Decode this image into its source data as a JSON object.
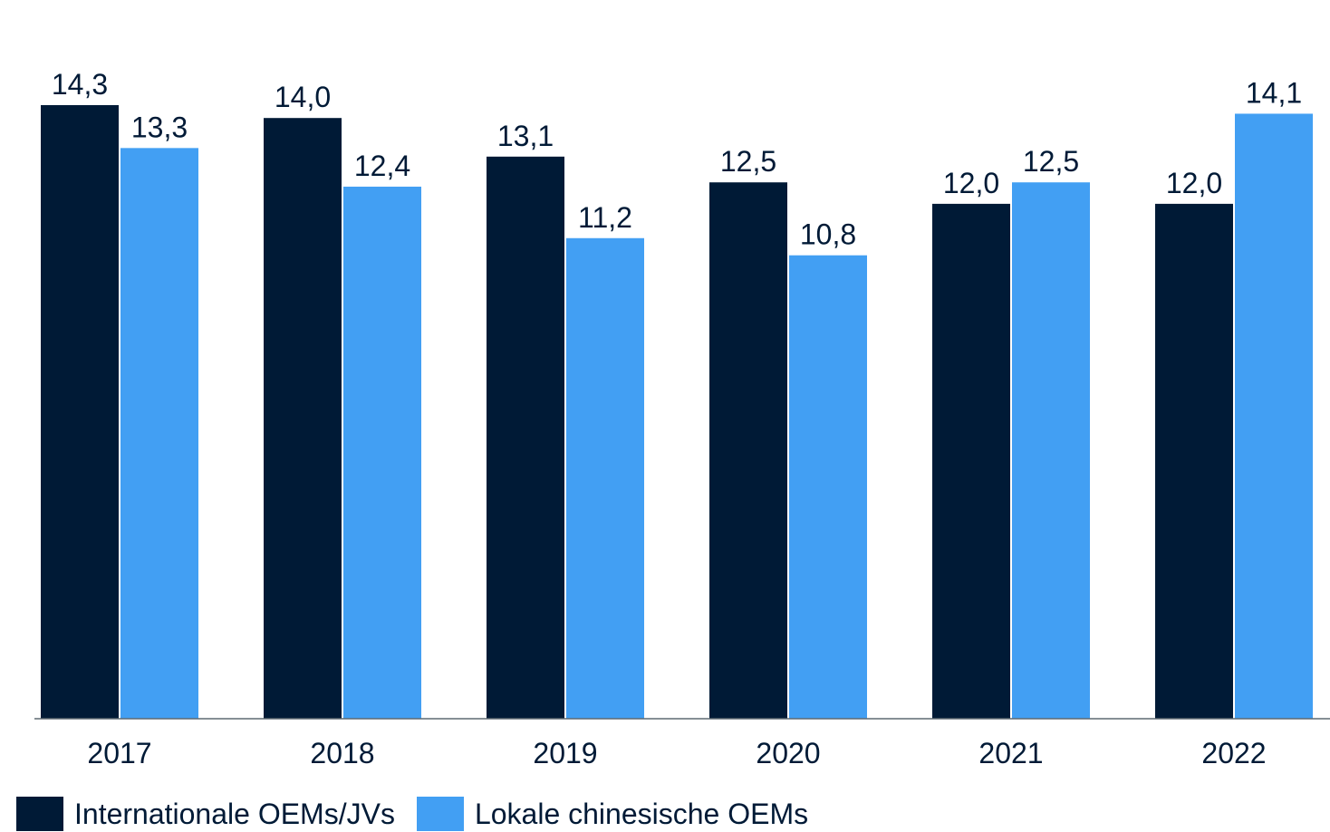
{
  "colors": {
    "series_1": "#001a36",
    "series_2": "#429ff3",
    "axis": "#5f6a72",
    "text": "#001a36"
  },
  "legend": {
    "items": [
      {
        "label": "Internationale OEMs/JVs"
      },
      {
        "label": "Lokale chinesische OEMs"
      }
    ]
  },
  "chart_data": {
    "type": "bar",
    "categories": [
      "2017",
      "2018",
      "2019",
      "2020",
      "2021",
      "2022"
    ],
    "series": [
      {
        "name": "Internationale OEMs/JVs",
        "values": [
          14.3,
          14.0,
          13.1,
          12.5,
          12.0,
          12.0
        ],
        "labels": [
          "14,3",
          "14,0",
          "13,1",
          "12,5",
          "12,0",
          "12,0"
        ]
      },
      {
        "name": "Lokale chinesische OEMs",
        "values": [
          13.3,
          12.4,
          11.2,
          10.8,
          12.5,
          14.1
        ],
        "labels": [
          "13,3",
          "12,4",
          "11,2",
          "10,8",
          "12,5",
          "14,1"
        ]
      }
    ],
    "title": "",
    "xlabel": "",
    "ylabel": "",
    "ylim": [
      0,
      14.3
    ],
    "grid": false,
    "legend_position": "bottom-left"
  }
}
